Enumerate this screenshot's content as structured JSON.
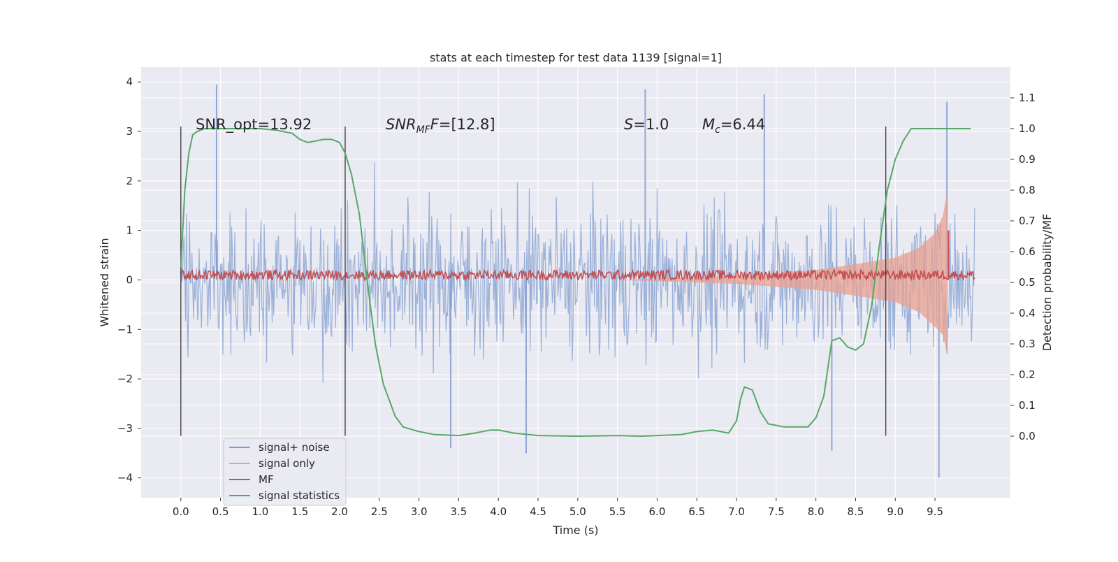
{
  "chart_data": {
    "type": "line",
    "title": "stats at each timestep for test data 1139 [signal=1]",
    "xlabel": "Time (s)",
    "ylabel": "Whitened strain",
    "ylabel_right": "Detection probability/MF",
    "xlim": [
      -0.5,
      10.45
    ],
    "ylim": [
      -4.4,
      4.3
    ],
    "ylim_right": [
      -0.2,
      1.2
    ],
    "xticks": [
      "0.0",
      "0.5",
      "1.0",
      "1.5",
      "2.0",
      "2.5",
      "3.0",
      "3.5",
      "4.0",
      "4.5",
      "5.0",
      "5.5",
      "6.0",
      "6.5",
      "7.0",
      "7.5",
      "8.0",
      "8.5",
      "9.0",
      "9.5"
    ],
    "yticks": [
      "4",
      "3",
      "2",
      "1",
      "0",
      "−1",
      "−2",
      "−3",
      "−4"
    ],
    "yticks_right": [
      "1.1",
      "1.0",
      "0.9",
      "0.8",
      "0.7",
      "0.6",
      "0.5",
      "0.4",
      "0.3",
      "0.2",
      "0.1",
      "0.0"
    ],
    "grid": true,
    "legend_position": "lower-left",
    "annotations": {
      "snr_opt": "SNR_opt=13.92",
      "snr_mf_italic": "SNR",
      "snr_mf_sub": "MF",
      "snr_mf_value": "=[12.8]",
      "s_italic": "S",
      "s_value": "=1.0",
      "mc_italic": "M",
      "mc_sub": "c",
      "mc_value": "=6.44"
    },
    "vertical_lines_x": [
      0.0,
      2.07,
      8.88
    ],
    "series": [
      {
        "name": "signal+ noise",
        "axis": "left",
        "color": "#7f9ccf",
        "description_range": [
          -3.0,
          3.0
        ],
        "x_range": [
          0.0,
          10.0
        ],
        "peaks": [
          {
            "x": 0.45,
            "y": 3.95
          },
          {
            "x": 5.85,
            "y": 3.85
          },
          {
            "x": 7.35,
            "y": 3.75
          },
          {
            "x": 9.65,
            "y": 3.6
          },
          {
            "x": 9.55,
            "y": -4.0
          },
          {
            "x": 4.35,
            "y": -3.5
          },
          {
            "x": 8.2,
            "y": -3.45
          },
          {
            "x": 3.4,
            "y": -3.4
          }
        ]
      },
      {
        "name": "signal only",
        "axis": "left",
        "color": "#e8a090",
        "envelope": [
          {
            "x": 5.5,
            "y": 0.0
          },
          {
            "x": 7.0,
            "y": 0.08
          },
          {
            "x": 8.0,
            "y": 0.2
          },
          {
            "x": 8.5,
            "y": 0.32
          },
          {
            "x": 9.0,
            "y": 0.45
          },
          {
            "x": 9.3,
            "y": 0.65
          },
          {
            "x": 9.5,
            "y": 0.95
          },
          {
            "x": 9.6,
            "y": 1.3
          },
          {
            "x": 9.65,
            "y": 1.75
          }
        ],
        "merger_x": 9.66,
        "merger_min": -1.5
      },
      {
        "name": "MF",
        "axis": "left",
        "color": "#c44e52",
        "x_range": [
          0.0,
          10.0
        ],
        "baseline": 0.1,
        "spike": {
          "x": 9.67,
          "y": 1.0
        }
      },
      {
        "name": "signal statistics",
        "axis": "right",
        "color": "#55a868",
        "x": [
          0.0,
          0.05,
          0.1,
          0.15,
          0.2,
          0.3,
          0.5,
          0.8,
          1.0,
          1.2,
          1.4,
          1.5,
          1.6,
          1.8,
          1.9,
          2.0,
          2.07,
          2.15,
          2.25,
          2.35,
          2.45,
          2.55,
          2.65,
          2.7,
          2.8,
          3.0,
          3.2,
          3.5,
          3.7,
          3.9,
          4.0,
          4.2,
          4.5,
          5.0,
          5.5,
          5.8,
          6.0,
          6.3,
          6.5,
          6.7,
          6.8,
          6.9,
          7.0,
          7.05,
          7.1,
          7.2,
          7.3,
          7.4,
          7.6,
          7.8,
          7.9,
          8.0,
          8.1,
          8.2,
          8.3,
          8.4,
          8.5,
          8.6,
          8.7,
          8.8,
          8.9,
          9.0,
          9.1,
          9.2,
          9.3,
          9.5,
          9.8,
          9.95
        ],
        "y": [
          0.55,
          0.8,
          0.92,
          0.98,
          0.99,
          1.0,
          1.0,
          1.0,
          1.0,
          0.995,
          0.985,
          0.965,
          0.955,
          0.965,
          0.965,
          0.955,
          0.92,
          0.85,
          0.72,
          0.5,
          0.3,
          0.17,
          0.1,
          0.065,
          0.03,
          0.015,
          0.005,
          0.002,
          0.01,
          0.02,
          0.02,
          0.01,
          0.002,
          0.0,
          0.002,
          0.0,
          0.002,
          0.005,
          0.015,
          0.02,
          0.015,
          0.01,
          0.05,
          0.12,
          0.16,
          0.15,
          0.08,
          0.04,
          0.03,
          0.03,
          0.03,
          0.06,
          0.13,
          0.31,
          0.32,
          0.29,
          0.28,
          0.3,
          0.42,
          0.62,
          0.8,
          0.9,
          0.96,
          1.0,
          1.0,
          1.0,
          1.0,
          1.0
        ]
      }
    ]
  }
}
